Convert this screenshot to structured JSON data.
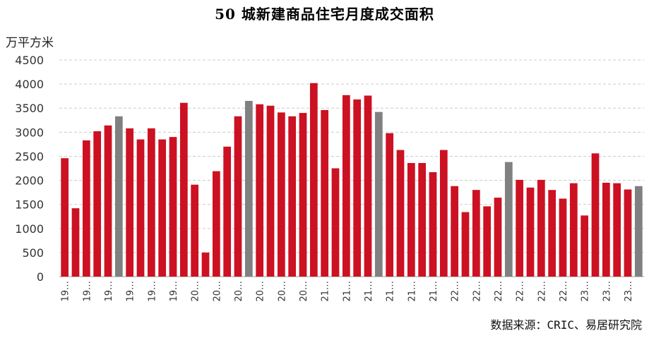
{
  "chart_data": {
    "type": "bar",
    "title": "50 城新建商品住宅月度成交面积",
    "ylabel": "万平方米",
    "source": "数据来源：CRIC、易居研究院",
    "ylim": [
      0,
      4500
    ],
    "yticks": [
      0,
      500,
      1000,
      1500,
      2000,
      2500,
      3000,
      3500,
      4000,
      4500
    ],
    "grid": true,
    "colors": {
      "bar": "#cc1122",
      "highlight": "#808080",
      "grid": "#cccccc"
    },
    "categories": [
      "19…",
      "19…",
      "19…",
      "19…",
      "19…",
      "19…",
      "19…",
      "19…",
      "19…",
      "19…",
      "19…",
      "19…",
      "20…",
      "20…",
      "20…",
      "20…",
      "20…",
      "20…",
      "20…",
      "20…",
      "20…",
      "20…",
      "20…",
      "20…",
      "21…",
      "21…",
      "21…",
      "21…",
      "21…",
      "21…",
      "21…",
      "21…",
      "21…",
      "21…",
      "21…",
      "21…",
      "22…",
      "22…",
      "22…",
      "22…",
      "22…",
      "22…",
      "22…",
      "22…",
      "22…",
      "22…",
      "22…",
      "22…",
      "23…",
      "23…",
      "23…",
      "23…",
      "23…",
      "23…"
    ],
    "x_tick_labels": [
      "19…",
      "19…",
      "19…",
      "19…",
      "19…",
      "19…",
      "19…",
      "19…",
      "19…",
      "19…",
      "19…",
      "19…",
      "20…",
      "20…",
      "20…",
      "20…",
      "20…",
      "20…",
      "20…",
      "20…",
      "20…",
      "20…",
      "20…",
      "20…",
      "21…",
      "21…",
      "21…",
      "21…",
      "21…",
      "21…",
      "21…",
      "21…",
      "21…",
      "21…",
      "21…",
      "21…",
      "22…",
      "22…",
      "22…",
      "22…",
      "22…",
      "22…",
      "22…",
      "22…",
      "22…",
      "22…",
      "22…",
      "22…",
      "23…",
      "23…",
      "23…",
      "23…",
      "23…",
      "23…"
    ],
    "values": [
      2460,
      1420,
      2830,
      3020,
      3140,
      3330,
      3080,
      2850,
      3080,
      2850,
      2900,
      3610,
      1910,
      500,
      2190,
      2700,
      3330,
      3650,
      3580,
      3550,
      3410,
      3330,
      3400,
      4020,
      3460,
      2250,
      3770,
      3680,
      3760,
      3420,
      2980,
      2630,
      2360,
      2360,
      2170,
      2630,
      1880,
      1340,
      1800,
      1460,
      1640,
      2380,
      2010,
      1850,
      2010,
      1800,
      1620,
      1940,
      1270,
      2560,
      1950,
      1940,
      1810,
      1880
    ],
    "highlight_indices": [
      5,
      17,
      29,
      41,
      53
    ]
  }
}
